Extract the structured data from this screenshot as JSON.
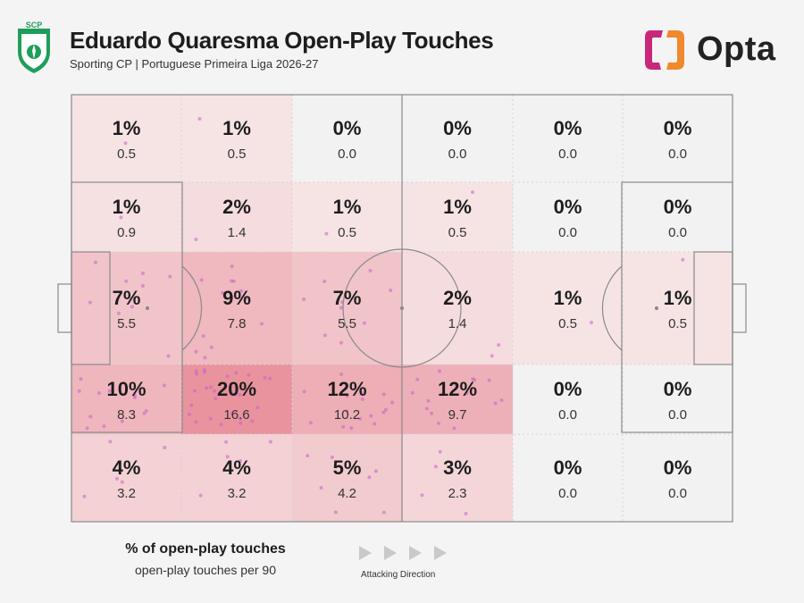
{
  "header": {
    "title": "Eduardo Quaresma Open-Play Touches",
    "subtitle": "Sporting CP | Portuguese Primeira Liga 2026-27",
    "club_badge_text": "SCP",
    "brand": "Opta"
  },
  "legend": {
    "primary": "% of open-play touches",
    "secondary": "open-play touches per 90",
    "direction": "Attacking Direction"
  },
  "colors": {
    "background": "#f5f4f4",
    "heat_low": "#f7eaea",
    "heat_high": "#e9939f",
    "dot": "#c961c9",
    "pitch_line": "#8a8a8a",
    "badge_green": "#1e9e5a",
    "brand_orange": "#f0892b",
    "brand_magenta": "#c8287a"
  },
  "chart_data": {
    "type": "heatmap",
    "title": "Eduardo Quaresma Open-Play Touches",
    "columns": 6,
    "rows": 5,
    "grid": {
      "percent": [
        [
          "1%",
          "1%",
          "0%",
          "0%",
          "0%",
          "0%"
        ],
        [
          "1%",
          "2%",
          "1%",
          "1%",
          "0%",
          "0%"
        ],
        [
          "7%",
          "9%",
          "7%",
          "2%",
          "1%",
          "1%"
        ],
        [
          "10%",
          "20%",
          "12%",
          "12%",
          "0%",
          "0%"
        ],
        [
          "4%",
          "4%",
          "5%",
          "3%",
          "0%",
          "0%"
        ]
      ],
      "per90": [
        [
          "0.5",
          "0.5",
          "0.0",
          "0.0",
          "0.0",
          "0.0"
        ],
        [
          "0.9",
          "1.4",
          "0.5",
          "0.5",
          "0.0",
          "0.0"
        ],
        [
          "5.5",
          "7.8",
          "5.5",
          "1.4",
          "0.5",
          "0.5"
        ],
        [
          "8.3",
          "16.6",
          "10.2",
          "9.7",
          "0.0",
          "0.0"
        ],
        [
          "3.2",
          "3.2",
          "4.2",
          "2.3",
          "0.0",
          "0.0"
        ]
      ]
    }
  }
}
